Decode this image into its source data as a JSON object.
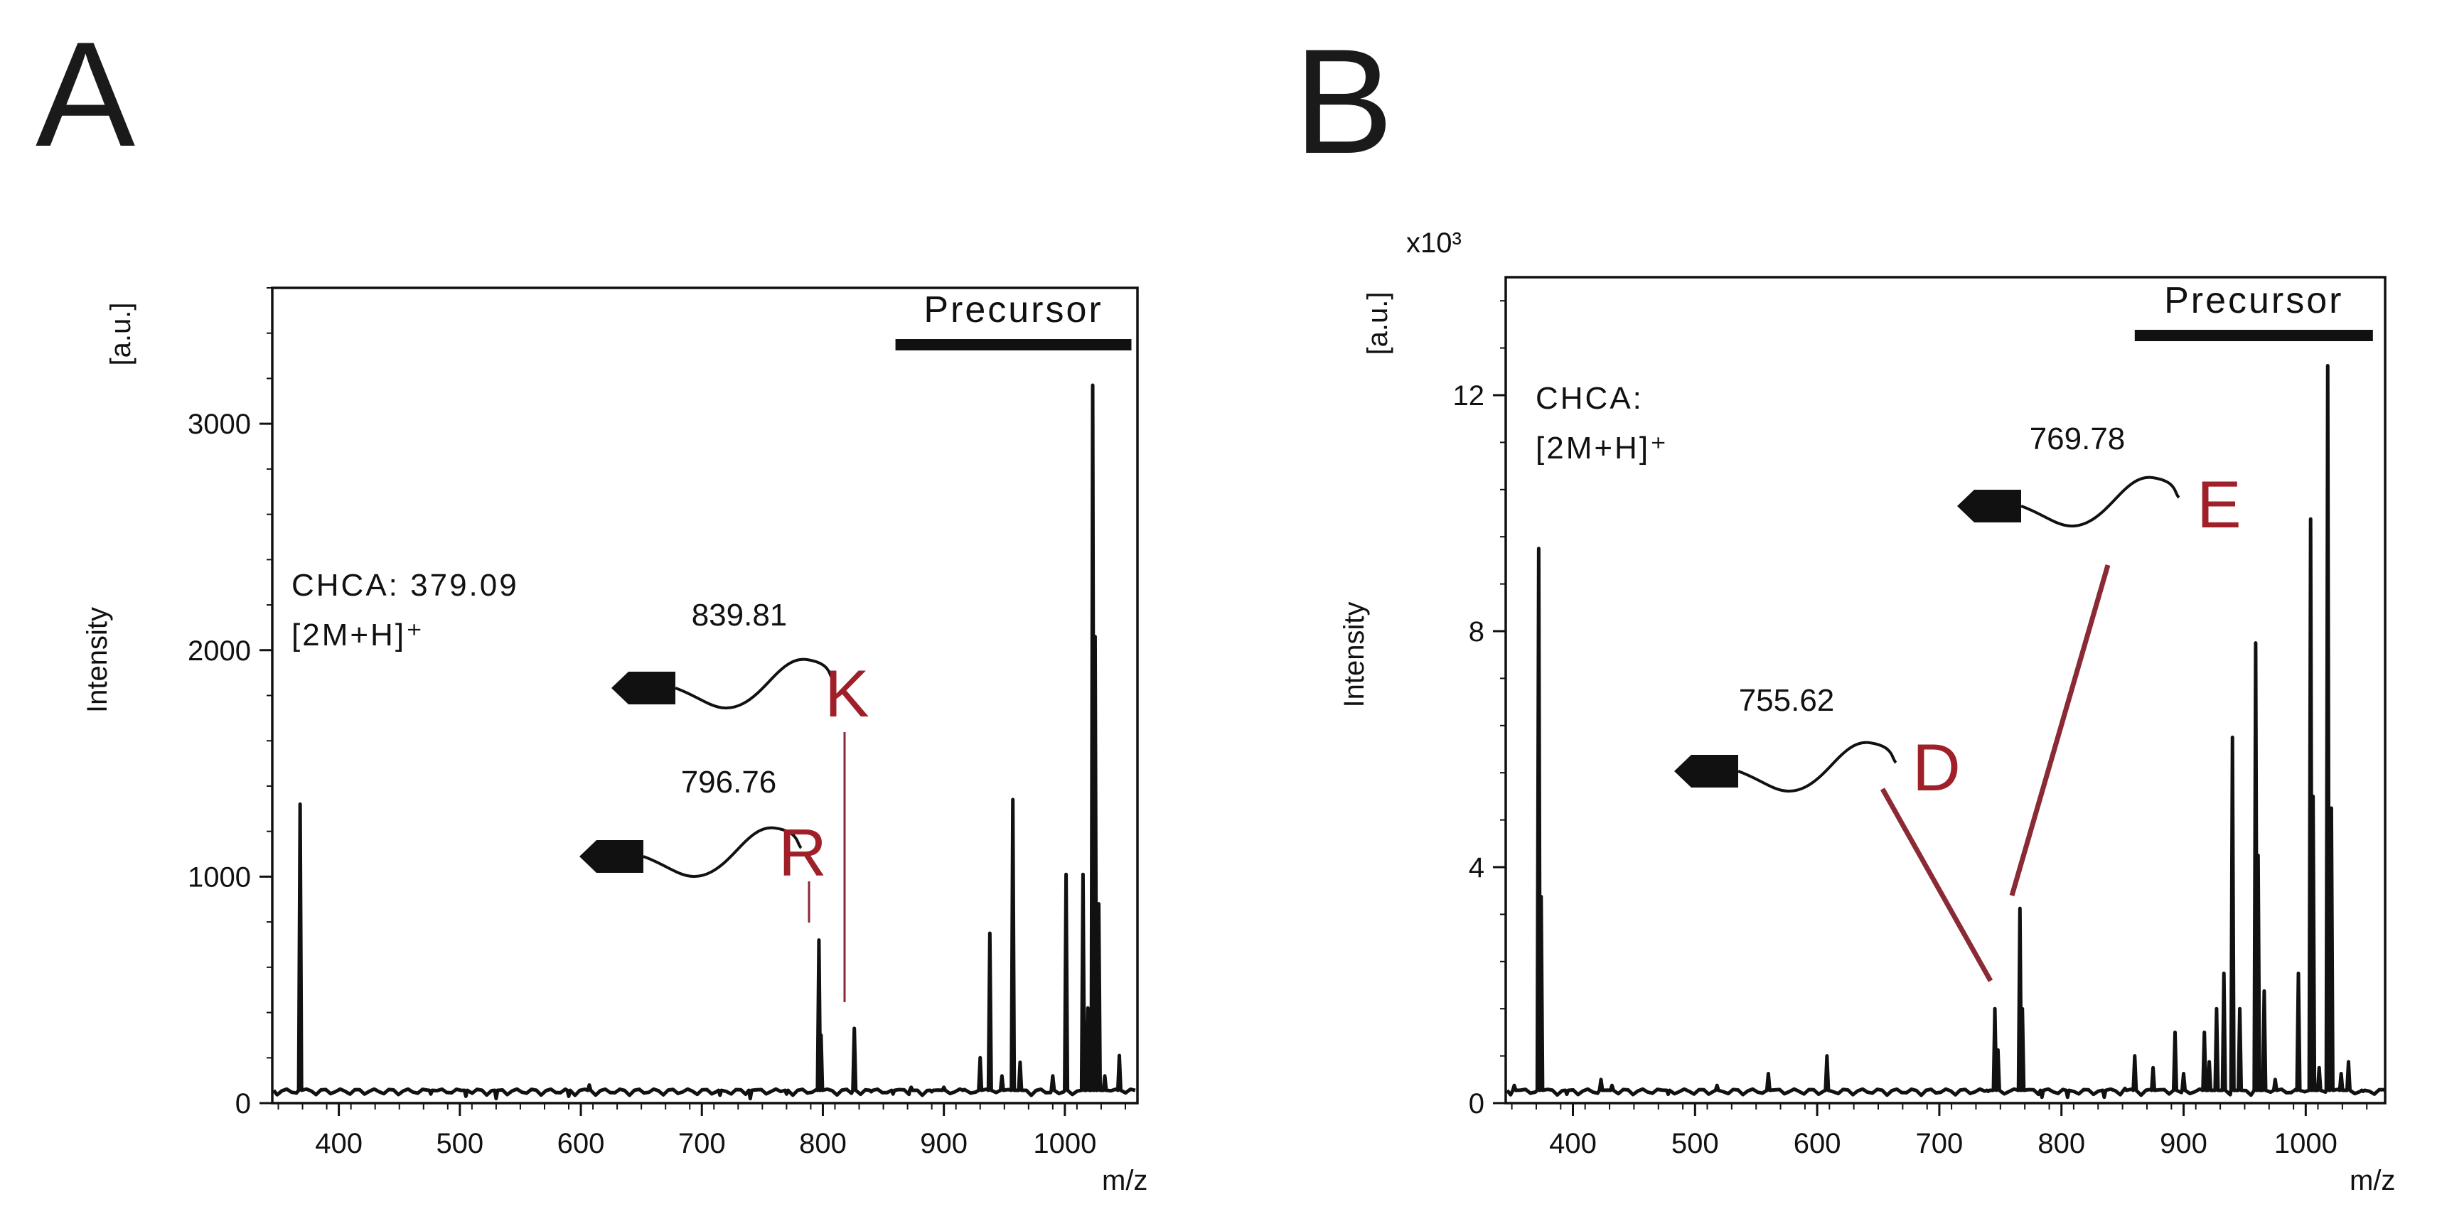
{
  "chart_data": [
    {
      "type": "line",
      "panel": "A",
      "xlabel": "m/z",
      "ylabel": "Intensity",
      "ylabel_unit": "[a.u.]",
      "xlim": [
        345,
        1060
      ],
      "ylim": [
        0,
        3600
      ],
      "xticks": [
        400,
        500,
        600,
        700,
        800,
        900,
        1000
      ],
      "xtick_labels": [
        "400",
        "500",
        "600",
        "700",
        "800",
        "900",
        "1000"
      ],
      "yticks": [
        0,
        1000,
        2000,
        3000
      ],
      "ytick_labels": [
        "0",
        "1000",
        "2000",
        "3000"
      ],
      "precursor_label": "Precursor",
      "precursor_range": [
        860,
        1055
      ],
      "matrix_label": "CHCA: 379.09",
      "matrix_ion": "[2M+H]⁺",
      "peaks": [
        {
          "x": 368,
          "y": 1320
        },
        {
          "x": 476,
          "y": 40
        },
        {
          "x": 505,
          "y": 30
        },
        {
          "x": 530,
          "y": 20
        },
        {
          "x": 590,
          "y": 30
        },
        {
          "x": 607,
          "y": 80
        },
        {
          "x": 715,
          "y": 35
        },
        {
          "x": 740,
          "y": 20
        },
        {
          "x": 770,
          "y": 40
        },
        {
          "x": 796.76,
          "y": 720
        },
        {
          "x": 798.5,
          "y": 300
        },
        {
          "x": 826,
          "y": 330
        },
        {
          "x": 840,
          "y": 50
        },
        {
          "x": 858,
          "y": 40
        },
        {
          "x": 873,
          "y": 70
        },
        {
          "x": 890,
          "y": 50
        },
        {
          "x": 900,
          "y": 70
        },
        {
          "x": 917,
          "y": 60
        },
        {
          "x": 930,
          "y": 200
        },
        {
          "x": 938,
          "y": 750
        },
        {
          "x": 948,
          "y": 120
        },
        {
          "x": 957,
          "y": 1340
        },
        {
          "x": 963,
          "y": 180
        },
        {
          "x": 990,
          "y": 120
        },
        {
          "x": 1001,
          "y": 1010
        },
        {
          "x": 1015,
          "y": 1010
        },
        {
          "x": 1019,
          "y": 420
        },
        {
          "x": 1023,
          "y": 3170
        },
        {
          "x": 1025,
          "y": 2060
        },
        {
          "x": 1028,
          "y": 880
        },
        {
          "x": 1033,
          "y": 120
        },
        {
          "x": 1045,
          "y": 210
        }
      ],
      "annotations": [
        {
          "mz": "839.81",
          "residue": "K",
          "x": 825
        },
        {
          "mz": "796.76",
          "residue": "R",
          "x": 796.76
        }
      ]
    },
    {
      "type": "line",
      "panel": "B",
      "xlabel": "m/z",
      "ylabel": "Intensity",
      "ylabel_unit": "[a.u.]",
      "y_multiplier": "x10³",
      "xlim": [
        345,
        1065
      ],
      "ylim": [
        0,
        14
      ],
      "xticks": [
        400,
        500,
        600,
        700,
        800,
        900,
        1000
      ],
      "xtick_labels": [
        "400",
        "500",
        "600",
        "700",
        "800",
        "900",
        "1000"
      ],
      "yticks": [
        0,
        4,
        8,
        12
      ],
      "ytick_labels": [
        "0",
        "4",
        "8",
        "12"
      ],
      "precursor_label": "Precursor",
      "precursor_range": [
        860,
        1055
      ],
      "matrix_label": "CHCA:",
      "matrix_ion": "[2M+H]⁺",
      "peaks": [
        {
          "x": 352,
          "y": 0.3
        },
        {
          "x": 372,
          "y": 9.4
        },
        {
          "x": 374,
          "y": 3.5
        },
        {
          "x": 395,
          "y": 0.15
        },
        {
          "x": 423,
          "y": 0.4
        },
        {
          "x": 432,
          "y": 0.3
        },
        {
          "x": 478,
          "y": 0.15
        },
        {
          "x": 518,
          "y": 0.3
        },
        {
          "x": 560,
          "y": 0.5
        },
        {
          "x": 608,
          "y": 0.8
        },
        {
          "x": 740,
          "y": 0.2
        },
        {
          "x": 745.5,
          "y": 1.6
        },
        {
          "x": 748,
          "y": 0.9
        },
        {
          "x": 766,
          "y": 3.3
        },
        {
          "x": 768,
          "y": 1.6
        },
        {
          "x": 784,
          "y": 0.1
        },
        {
          "x": 805,
          "y": 0.1
        },
        {
          "x": 835,
          "y": 0.1
        },
        {
          "x": 852,
          "y": 0.25
        },
        {
          "x": 860,
          "y": 0.8
        },
        {
          "x": 875,
          "y": 0.6
        },
        {
          "x": 893,
          "y": 1.2
        },
        {
          "x": 900,
          "y": 0.5
        },
        {
          "x": 917,
          "y": 1.2
        },
        {
          "x": 921,
          "y": 0.7
        },
        {
          "x": 927,
          "y": 1.6
        },
        {
          "x": 933,
          "y": 2.2
        },
        {
          "x": 940,
          "y": 6.2
        },
        {
          "x": 946,
          "y": 1.6
        },
        {
          "x": 959,
          "y": 7.8
        },
        {
          "x": 961,
          "y": 4.2
        },
        {
          "x": 966,
          "y": 1.9
        },
        {
          "x": 975,
          "y": 0.4
        },
        {
          "x": 994,
          "y": 2.2
        },
        {
          "x": 1004,
          "y": 9.9
        },
        {
          "x": 1006,
          "y": 5.2
        },
        {
          "x": 1011,
          "y": 0.6
        },
        {
          "x": 1018,
          "y": 12.5
        },
        {
          "x": 1021,
          "y": 5.0
        },
        {
          "x": 1029,
          "y": 0.5
        },
        {
          "x": 1035,
          "y": 0.7
        },
        {
          "x": 1047,
          "y": 0.2
        }
      ],
      "annotations": [
        {
          "mz": "769.78",
          "residue": "E",
          "x": 766
        },
        {
          "mz": "755.62",
          "residue": "D",
          "x": 745.5
        }
      ]
    }
  ]
}
